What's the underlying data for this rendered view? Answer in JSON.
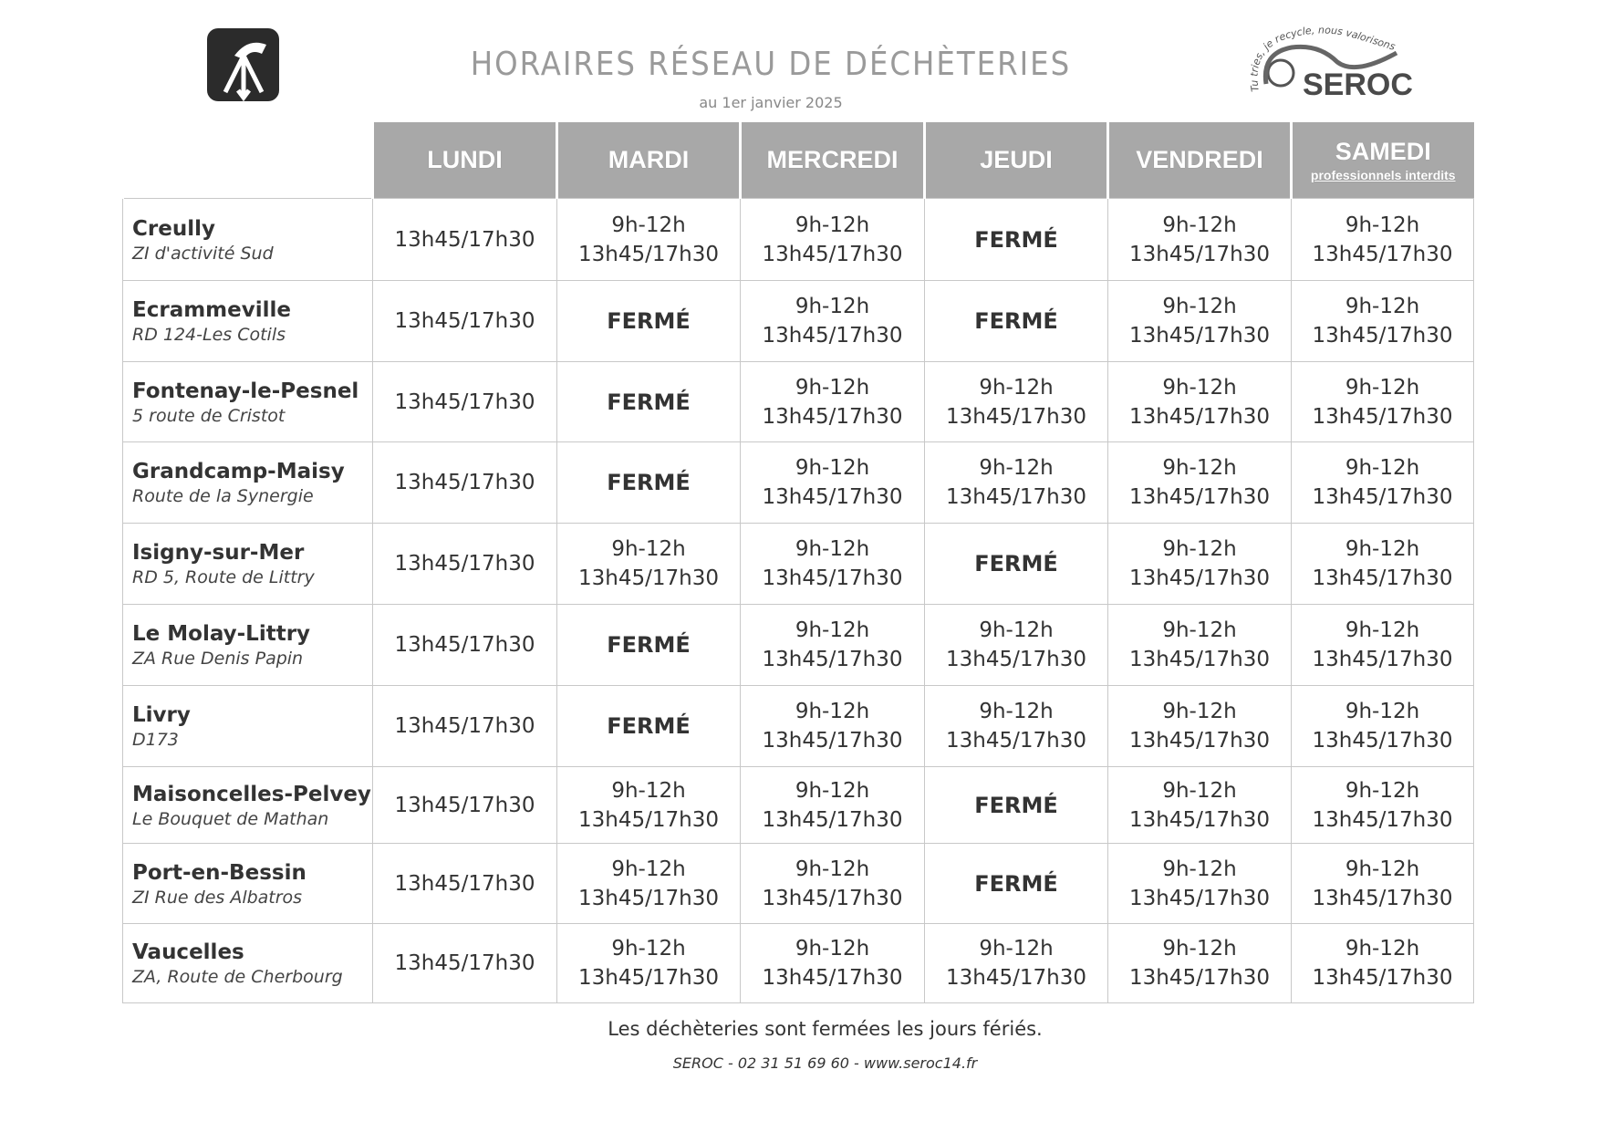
{
  "header": {
    "title": "HORAIRES RÉSEAU DE DÉCHÈTERIES",
    "subtitle": "au 1er janvier 2025",
    "brand": "SEROC",
    "slogan": "Tu tries, je recycle, nous valorisons"
  },
  "columns": [
    {
      "label": "LUNDI"
    },
    {
      "label": "MARDI"
    },
    {
      "label": "MERCREDI"
    },
    {
      "label": "JEUDI"
    },
    {
      "label": "VENDREDI"
    },
    {
      "label": "SAMEDI",
      "sub": "professionnels interdits"
    }
  ],
  "rows": [
    {
      "name": "Creully",
      "address": "ZI d'activité Sud",
      "days": [
        "13h45/17h30",
        "9h-12h 13h45/17h30",
        "9h-12h 13h45/17h30",
        "FERMÉ",
        "9h-12h 13h45/17h30",
        "9h-12h 13h45/17h30"
      ]
    },
    {
      "name": "Ecrammeville",
      "address": "RD 124-Les Cotils",
      "days": [
        "13h45/17h30",
        "FERMÉ",
        "9h-12h 13h45/17h30",
        "FERMÉ",
        "9h-12h 13h45/17h30",
        "9h-12h 13h45/17h30"
      ]
    },
    {
      "name": "Fontenay-le-Pesnel",
      "address": "5 route de Cristot",
      "days": [
        "13h45/17h30",
        "FERMÉ",
        "9h-12h 13h45/17h30",
        "9h-12h 13h45/17h30",
        "9h-12h 13h45/17h30",
        "9h-12h 13h45/17h30"
      ]
    },
    {
      "name": "Grandcamp-Maisy",
      "address": "Route de la Synergie",
      "days": [
        "13h45/17h30",
        "FERMÉ",
        "9h-12h 13h45/17h30",
        "9h-12h 13h45/17h30",
        "9h-12h 13h45/17h30",
        "9h-12h 13h45/17h30"
      ]
    },
    {
      "name": "Isigny-sur-Mer",
      "address": "RD 5, Route de Littry",
      "days": [
        "13h45/17h30",
        "9h-12h 13h45/17h30",
        "9h-12h 13h45/17h30",
        "FERMÉ",
        "9h-12h 13h45/17h30",
        "9h-12h 13h45/17h30"
      ]
    },
    {
      "name": "Le Molay-Littry",
      "address": "ZA Rue Denis Papin",
      "days": [
        "13h45/17h30",
        "FERMÉ",
        "9h-12h 13h45/17h30",
        "9h-12h 13h45/17h30",
        "9h-12h 13h45/17h30",
        "9h-12h 13h45/17h30"
      ]
    },
    {
      "name": "Livry",
      "address": "D173",
      "days": [
        "13h45/17h30",
        "FERMÉ",
        "9h-12h 13h45/17h30",
        "9h-12h 13h45/17h30",
        "9h-12h 13h45/17h30",
        "9h-12h 13h45/17h30"
      ]
    },
    {
      "name": "Maisoncelles-Pelvey",
      "address": "Le Bouquet de Mathan",
      "days": [
        "13h45/17h30",
        "9h-12h 13h45/17h30",
        "9h-12h 13h45/17h30",
        "FERMÉ",
        "9h-12h 13h45/17h30",
        "9h-12h 13h45/17h30"
      ]
    },
    {
      "name": "Port-en-Bessin",
      "address": "ZI Rue des Albatros",
      "days": [
        "13h45/17h30",
        "9h-12h 13h45/17h30",
        "9h-12h 13h45/17h30",
        "FERMÉ",
        "9h-12h 13h45/17h30",
        "9h-12h 13h45/17h30"
      ]
    },
    {
      "name": "Vaucelles",
      "address": "ZA, Route de Cherbourg",
      "days": [
        "13h45/17h30",
        "9h-12h 13h45/17h30",
        "9h-12h 13h45/17h30",
        "9h-12h 13h45/17h30",
        "9h-12h 13h45/17h30",
        "9h-12h 13h45/17h30"
      ]
    }
  ],
  "footer": {
    "note": "Les déchèteries sont fermées les jours fériés.",
    "contact": "SEROC - 02 31 51 69 60 - ",
    "website": "www.seroc14.fr"
  },
  "colors": {
    "header_bg": "#a8a8a8",
    "title": "#9a9a9a",
    "grid": "#c8c8c8"
  }
}
